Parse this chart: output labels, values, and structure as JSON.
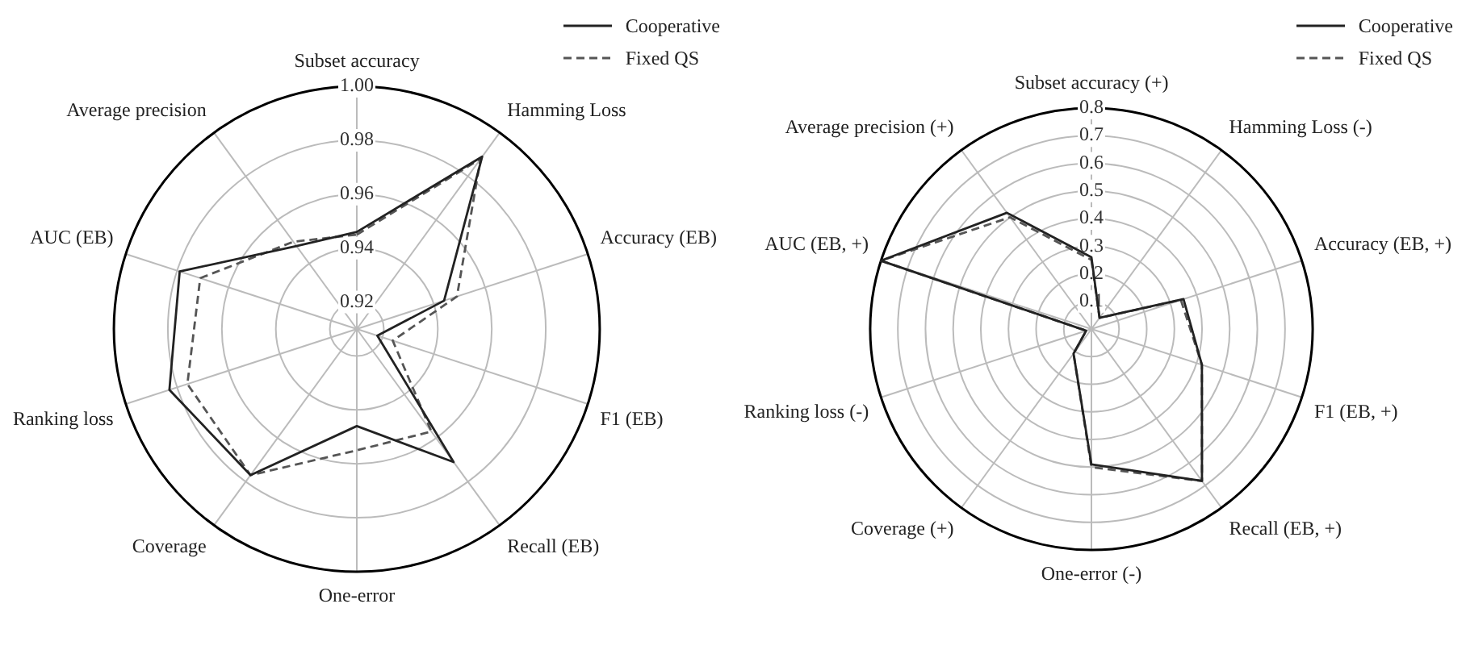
{
  "chart_data": [
    {
      "type": "radar",
      "categories": [
        "Subset accuracy",
        "Hamming Loss",
        "Accuracy (EB)",
        "F1 (EB)",
        "Recall (EB)",
        "One-error",
        "Coverage",
        "Ranking loss",
        "AUC (EB)",
        "Average precision"
      ],
      "series": [
        {
          "name": "Cooperative",
          "color": "#222222",
          "line_style": "solid",
          "values": [
            0.946,
            0.989,
            0.944,
            0.918,
            0.971,
            0.946,
            0.977,
            0.983,
            0.979,
            0.948
          ]
        },
        {
          "name": "Fixed QS",
          "color": "#555555",
          "line_style": "dashed",
          "values": [
            0.945,
            0.988,
            0.949,
            0.924,
            0.957,
            0.955,
            0.977,
            0.976,
            0.971,
            0.95
          ]
        }
      ],
      "ylim": [
        0.91,
        1.0
      ],
      "yticks": [
        {
          "value": 0.92,
          "label": "0.92"
        },
        {
          "value": 0.94,
          "label": "0.94"
        },
        {
          "value": 0.96,
          "label": "0.96"
        },
        {
          "value": 0.98,
          "label": "0.98"
        },
        {
          "value": 1.0,
          "label": "1.00"
        }
      ],
      "grid": true,
      "legend": "top right",
      "marker": "none"
    },
    {
      "type": "radar",
      "categories": [
        "Subset accuracy (+)",
        "Hamming Loss (-)",
        "Accuracy (EB, +)",
        "F1 (EB, +)",
        "Recall (EB, +)",
        "One-error (-)",
        "Coverage (+)",
        "Ranking loss (-)",
        "AUC (EB, +)",
        "Average precision (+)"
      ],
      "series": [
        {
          "name": "Cooperative",
          "color": "#222222",
          "line_style": "solid",
          "values": [
            0.26,
            0.05,
            0.35,
            0.42,
            0.68,
            0.49,
            0.11,
            0.02,
            0.8,
            0.52
          ]
        },
        {
          "name": "Fixed QS",
          "color": "#555555",
          "line_style": "dashed",
          "values": [
            0.25,
            0.05,
            0.34,
            0.42,
            0.68,
            0.5,
            0.11,
            0.02,
            0.8,
            0.5
          ]
        }
      ],
      "ylim": [
        0,
        0.8
      ],
      "yticks": [
        0.1,
        0.2,
        0.3,
        0.4,
        0.5,
        0.6,
        0.7,
        0.8
      ],
      "grid": true,
      "legend": "top right",
      "marker": "none"
    }
  ]
}
